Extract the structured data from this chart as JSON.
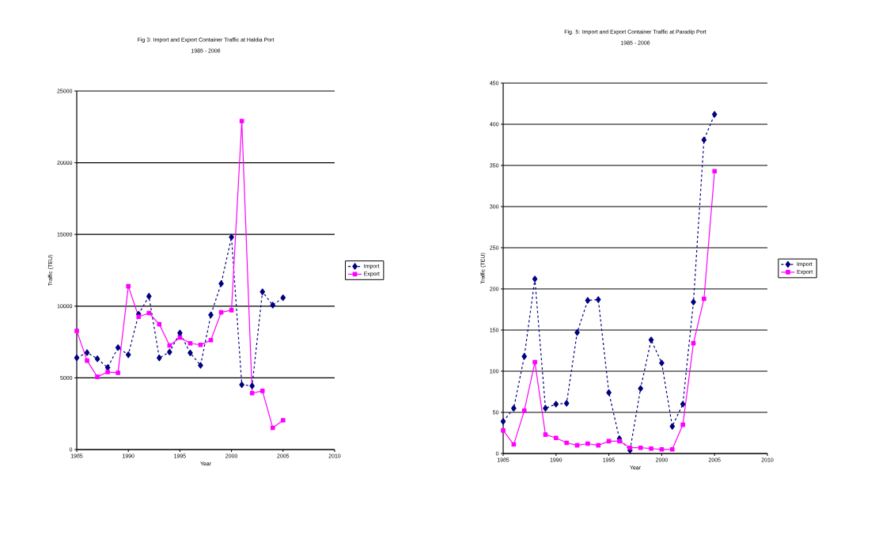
{
  "chart_data": [
    {
      "type": "line",
      "title": "Fig 3: Import and Export Container Traffic at Haldia Port",
      "subtitle": "1985 - 2006",
      "xlabel": "Year",
      "ylabel": "Traffic (TEU)",
      "x": [
        1985,
        1986,
        1987,
        1988,
        1989,
        1990,
        1991,
        1992,
        1993,
        1994,
        1995,
        1996,
        1997,
        1998,
        1999,
        2000,
        2001,
        2002,
        2003,
        2004,
        2005
      ],
      "series": [
        {
          "name": "Import",
          "color": "#000080",
          "marker": "diamond",
          "line_style": "dashed",
          "values": [
            6400,
            6760,
            6330,
            5720,
            7110,
            6610,
            9440,
            10690,
            6390,
            6800,
            8130,
            6740,
            5870,
            9390,
            11570,
            14810,
            4520,
            4440,
            11000,
            10070,
            10590
          ]
        },
        {
          "name": "Export",
          "color": "#ff00ff",
          "marker": "square",
          "line_style": "solid",
          "values": [
            8280,
            6200,
            5070,
            5410,
            5350,
            11390,
            9260,
            9520,
            8740,
            7260,
            7810,
            7410,
            7300,
            7630,
            9570,
            9720,
            22900,
            3930,
            4090,
            1520,
            2040
          ]
        }
      ],
      "xlim": [
        1985,
        2010
      ],
      "xticks": [
        1985,
        1990,
        1995,
        2000,
        2005,
        2010
      ],
      "ylim": [
        0,
        25000
      ],
      "yticks": [
        0,
        5000,
        10000,
        15000,
        20000,
        25000
      ],
      "grid": "y",
      "legend": "right"
    },
    {
      "type": "line",
      "title": "Fig. 5: Import and Export Container Traffic at Paradip Port",
      "subtitle": "1985 - 2006",
      "xlabel": "Year",
      "ylabel": "Traffic (TEU)",
      "x": [
        1985,
        1986,
        1987,
        1988,
        1989,
        1990,
        1991,
        1992,
        1993,
        1994,
        1995,
        1996,
        1997,
        1998,
        1999,
        2000,
        2001,
        2002,
        2003,
        2004,
        2005
      ],
      "series": [
        {
          "name": "Import",
          "color": "#000080",
          "marker": "diamond",
          "line_style": "dashed",
          "values": [
            39,
            55,
            118,
            212,
            55,
            60,
            61,
            147,
            186,
            187,
            74,
            18,
            4,
            79,
            138,
            110,
            33,
            60,
            184,
            381,
            412
          ]
        },
        {
          "name": "Export",
          "color": "#ff00ff",
          "marker": "square",
          "line_style": "solid",
          "values": [
            28,
            11,
            52,
            111,
            23,
            19,
            13,
            10,
            12,
            10,
            15,
            15,
            7,
            7,
            6,
            5,
            5,
            35,
            134,
            188,
            343
          ]
        }
      ],
      "xlim": [
        1985,
        2010
      ],
      "xticks": [
        1985,
        1990,
        1995,
        2000,
        2005,
        2010
      ],
      "ylim": [
        0,
        450
      ],
      "yticks": [
        0,
        50,
        100,
        150,
        200,
        250,
        300,
        350,
        400,
        450
      ],
      "grid": "y",
      "legend": "right"
    }
  ]
}
